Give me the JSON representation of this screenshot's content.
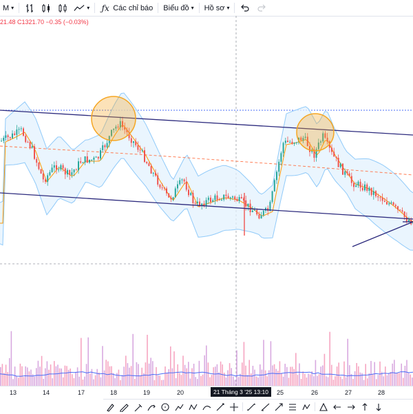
{
  "toolbar": {
    "interval_label": "M",
    "indicators_label": "Các chỉ báo",
    "chart_label": "Biểu đồ",
    "profile_label": "Hồ sơ"
  },
  "legend": {
    "text": "21.48 C1321.70 −0.35 (−0.03%)"
  },
  "time_axis": {
    "ticks": [
      "13",
      "14",
      "17",
      "18",
      "19",
      "20",
      "25",
      "26",
      "27",
      "28"
    ],
    "crosshair_label": "21 Tháng 3 '25   13:10"
  },
  "drawing_tools": [
    "brush-icon",
    "pen-icon",
    "highlighter-icon",
    "arrow-curve-icon",
    "circle-icon",
    "path-icon",
    "polyline-icon",
    "curve-icon",
    "line-brush-icon",
    "crosshair-icon",
    "trend-line-icon",
    "ray-icon",
    "arrow-line-icon",
    "fib-icon",
    "pattern-icon",
    "triangle-icon",
    "arrow-left-icon",
    "arrow-right-icon",
    "arrow-up-icon",
    "arrow-down-icon"
  ],
  "colors": {
    "up": "#26a69a",
    "down": "#ef5350",
    "band": "#90caf9",
    "band_fill": "#e3f2fd",
    "ma": "#ff9800",
    "trendline": "#2c2a7d",
    "highlight_circle": "#f5a623",
    "volume_ma": "#4a6cf7"
  }
}
